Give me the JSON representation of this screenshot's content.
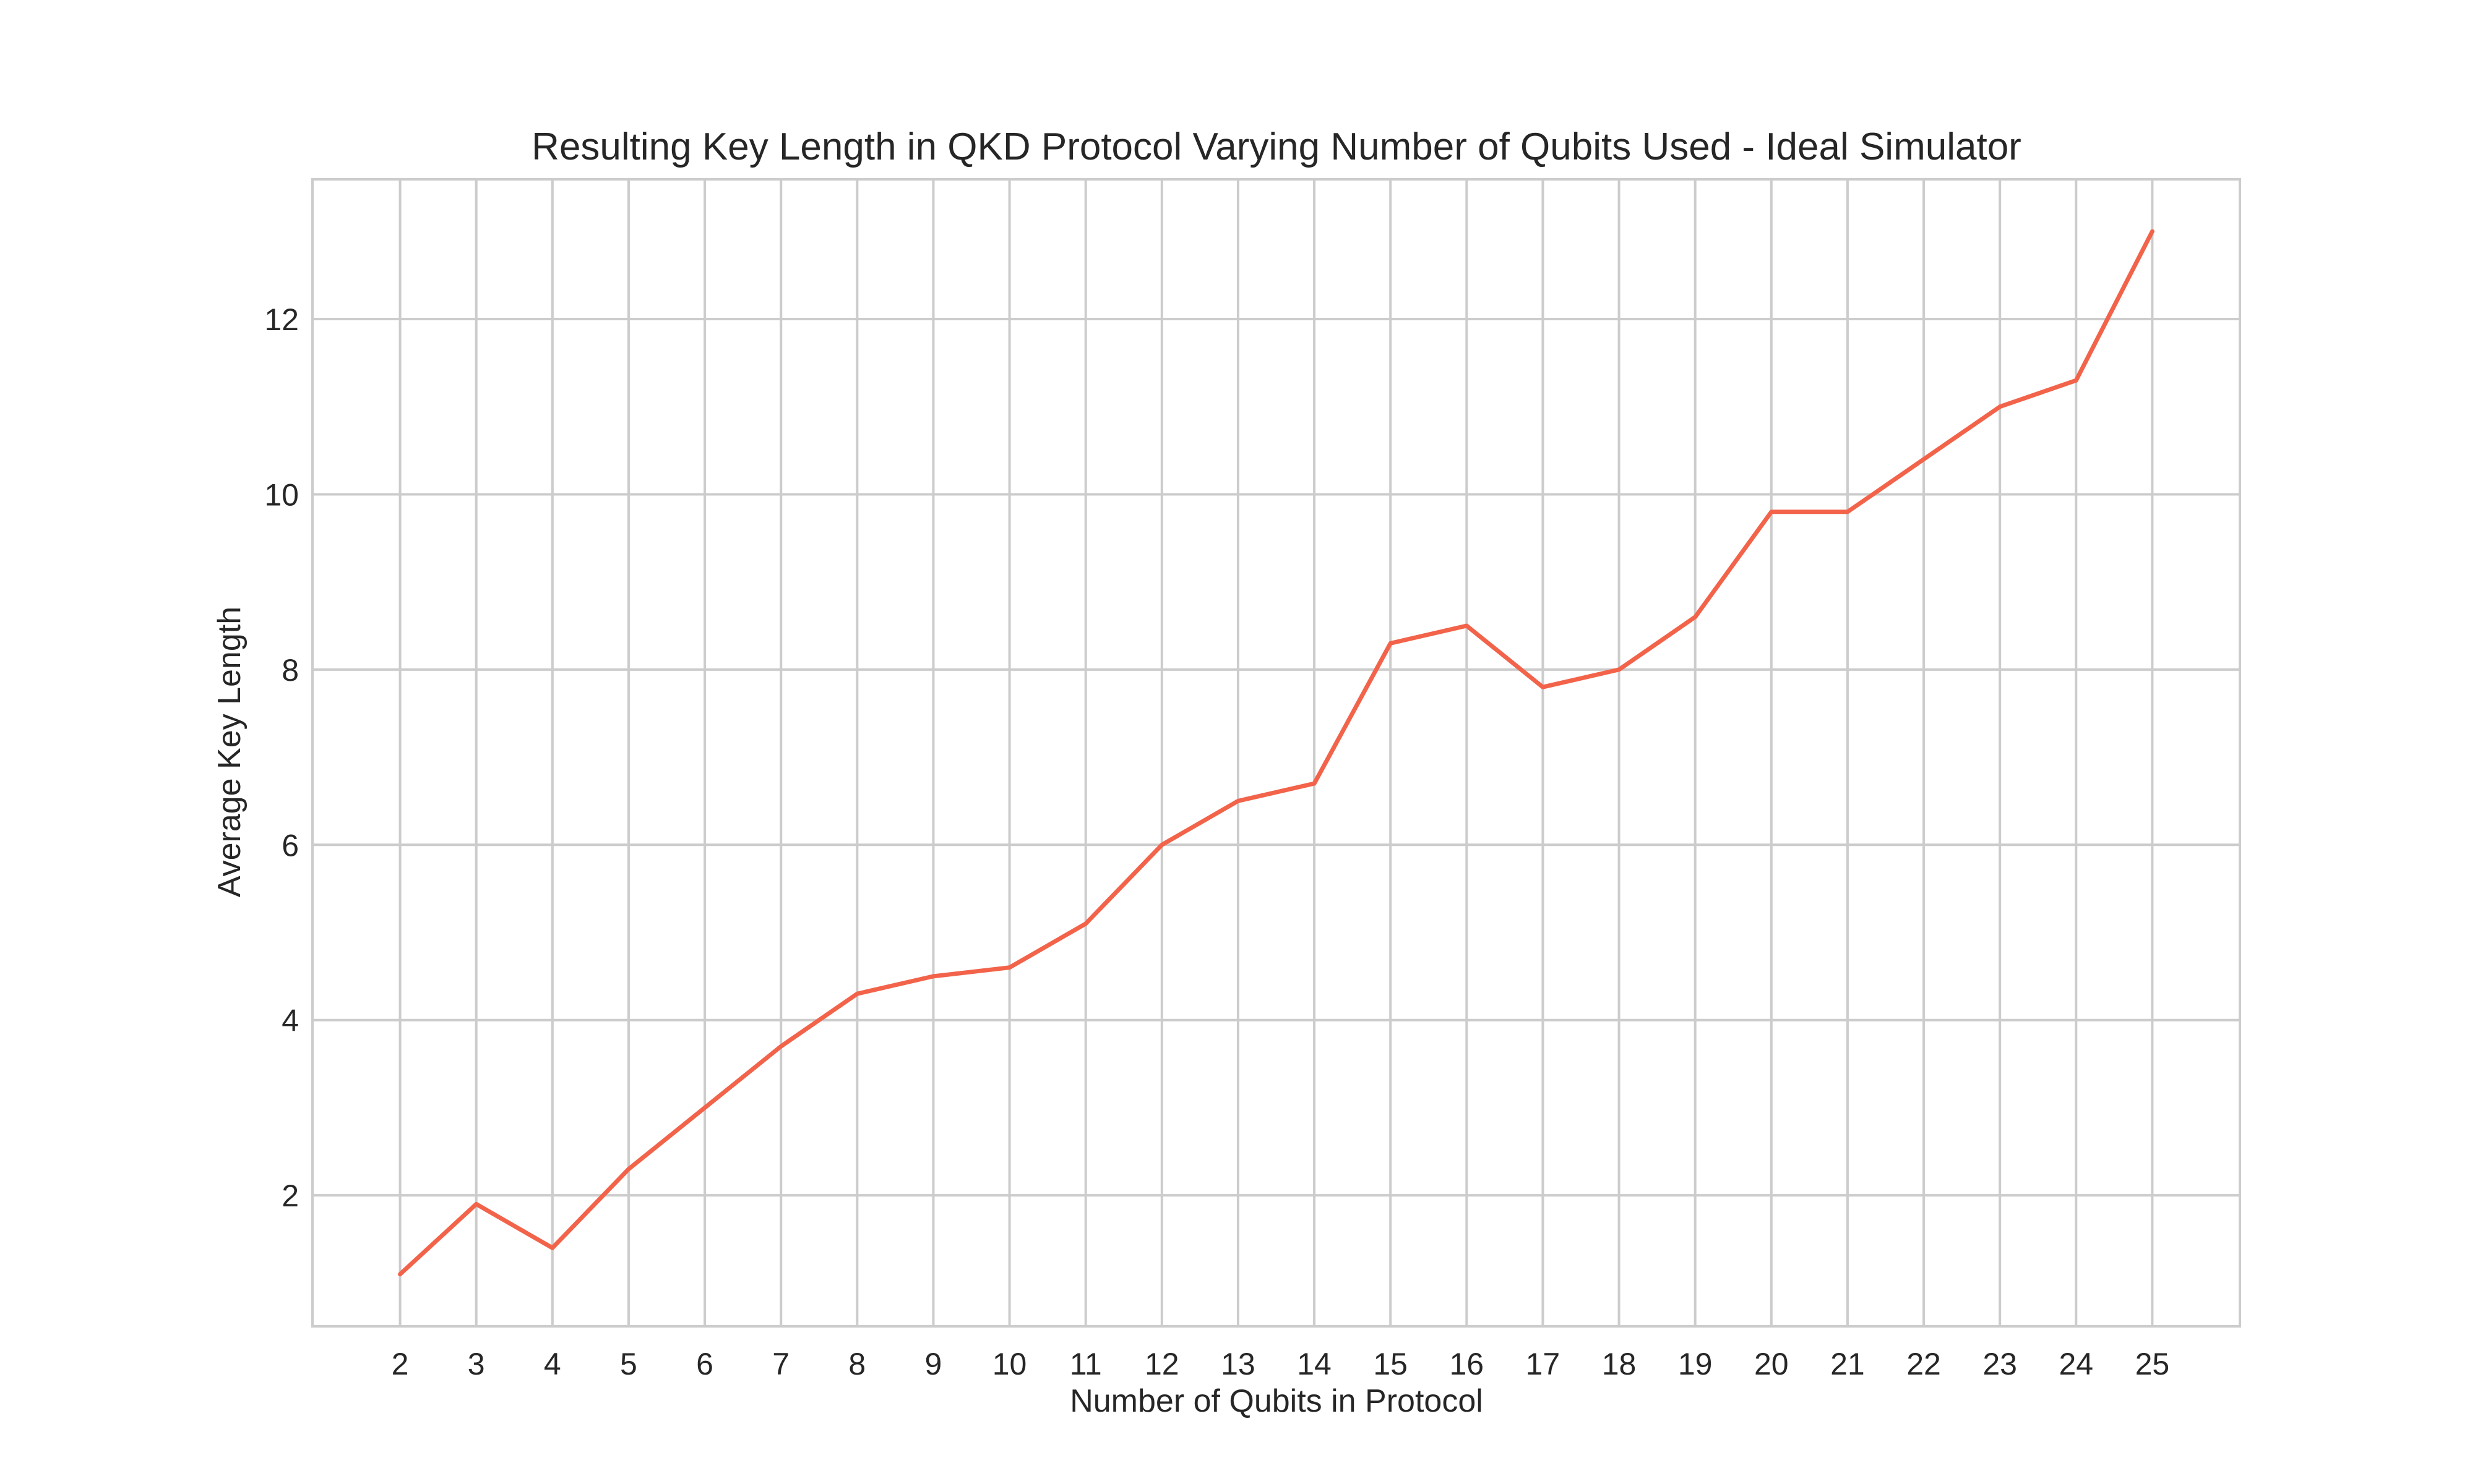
{
  "chart_data": {
    "type": "line",
    "title": "Resulting Key Length in QKD Protocol Varying Number of Qubits Used - Ideal Simulator",
    "xlabel": "Number of Qubits in Protocol",
    "ylabel": "Average Key Length",
    "x": [
      2,
      3,
      4,
      5,
      6,
      7,
      8,
      9,
      10,
      11,
      12,
      13,
      14,
      15,
      16,
      17,
      18,
      19,
      20,
      21,
      22,
      23,
      24,
      25
    ],
    "series": [
      {
        "values": [
          1.1,
          1.9,
          1.4,
          2.3,
          3.0,
          3.7,
          4.3,
          4.5,
          4.6,
          5.1,
          6.0,
          6.5,
          6.7,
          8.3,
          8.5,
          7.8,
          8.0,
          8.6,
          9.8,
          9.8,
          10.4,
          11.0,
          11.3,
          13.0
        ],
        "color": "#f2634a"
      }
    ],
    "xticks": [
      2,
      3,
      4,
      5,
      6,
      7,
      8,
      9,
      10,
      11,
      12,
      13,
      14,
      15,
      16,
      17,
      18,
      19,
      20,
      21,
      22,
      23,
      24,
      25
    ],
    "yticks": [
      2,
      4,
      6,
      8,
      10,
      12
    ],
    "xlim": [
      0.85,
      26.15
    ],
    "ylim": [
      0.505,
      13.595
    ],
    "grid": true,
    "legend": "none"
  }
}
